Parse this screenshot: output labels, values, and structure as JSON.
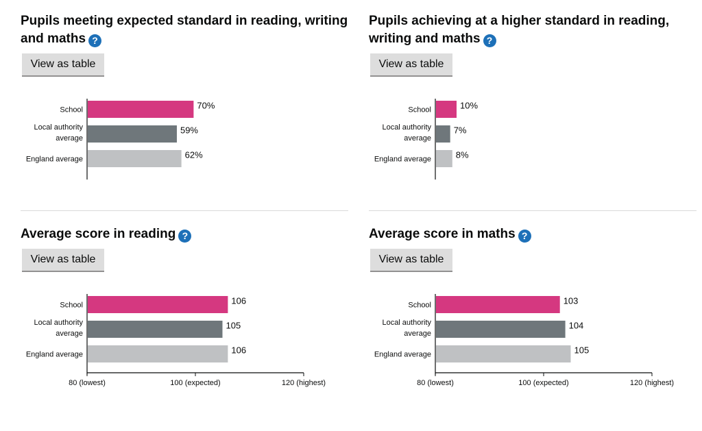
{
  "ui": {
    "view_as_table": "View as table",
    "help_icon": "question-circle-icon"
  },
  "colors": {
    "school": "#d53880",
    "local_authority": "#6f777b",
    "england": "#bfc1c3",
    "axis": "#0b0c0c",
    "help": "#1d70b8"
  },
  "chart_data": [
    {
      "type": "bar",
      "orientation": "horizontal",
      "title": "Pupils meeting expected standard in reading, writing and maths",
      "categories": [
        [
          "School"
        ],
        [
          "Local authority",
          "average"
        ],
        [
          "England average"
        ]
      ],
      "values": [
        70,
        59,
        62
      ],
      "value_labels": [
        "70%",
        "59%",
        "62%"
      ],
      "xlim": [
        0,
        100
      ],
      "ticks": []
    },
    {
      "type": "bar",
      "orientation": "horizontal",
      "title": "Pupils achieving at a higher standard in reading, writing and maths",
      "categories": [
        [
          "School"
        ],
        [
          "Local authority",
          "average"
        ],
        [
          "England average"
        ]
      ],
      "values": [
        10,
        7,
        8
      ],
      "value_labels": [
        "10%",
        "7%",
        "8%"
      ],
      "xlim": [
        0,
        100
      ],
      "ticks": []
    },
    {
      "type": "bar",
      "orientation": "horizontal",
      "title": "Average score in reading",
      "categories": [
        [
          "School"
        ],
        [
          "Local authority",
          "average"
        ],
        [
          "England average"
        ]
      ],
      "values": [
        106,
        105,
        106
      ],
      "value_labels": [
        "106",
        "105",
        "106"
      ],
      "xlim": [
        80,
        120
      ],
      "ticks": [
        {
          "value": 80,
          "label": "80 (lowest)"
        },
        {
          "value": 100,
          "label": "100 (expected)"
        },
        {
          "value": 120,
          "label": "120 (highest)"
        }
      ]
    },
    {
      "type": "bar",
      "orientation": "horizontal",
      "title": "Average score in maths",
      "categories": [
        [
          "School"
        ],
        [
          "Local authority",
          "average"
        ],
        [
          "England average"
        ]
      ],
      "values": [
        103,
        104,
        105
      ],
      "value_labels": [
        "103",
        "104",
        "105"
      ],
      "xlim": [
        80,
        120
      ],
      "ticks": [
        {
          "value": 80,
          "label": "80 (lowest)"
        },
        {
          "value": 100,
          "label": "100 (expected)"
        },
        {
          "value": 120,
          "label": "120 (highest)"
        }
      ]
    }
  ]
}
